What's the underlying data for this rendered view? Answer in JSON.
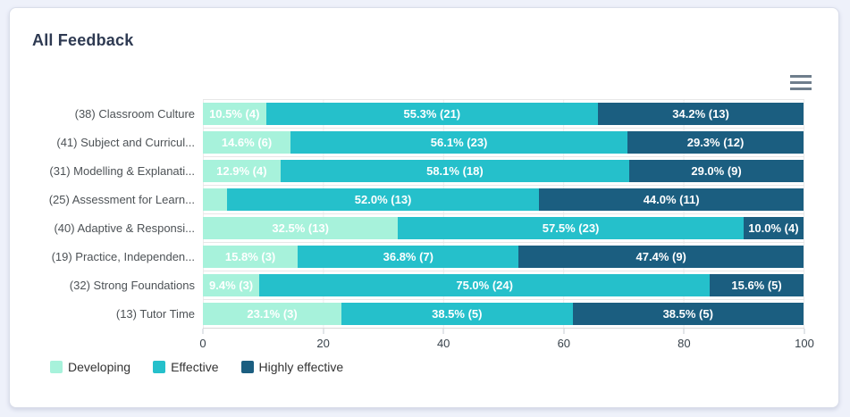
{
  "card": {
    "title": "All Feedback"
  },
  "toolbar": {
    "menu_icon": "hamburger-menu"
  },
  "chart_data": {
    "type": "bar",
    "stacked": true,
    "orientation": "horizontal",
    "title": "All Feedback",
    "xlabel": "",
    "ylabel": "",
    "value_axis": {
      "min": 0,
      "max": 100,
      "ticks": [
        0,
        20,
        40,
        60,
        80,
        100
      ]
    },
    "grid": true,
    "legend_position": "bottom-left",
    "series": [
      {
        "name": "Developing",
        "color": "#A7F2DB"
      },
      {
        "name": "Effective",
        "color": "#25C0CB"
      },
      {
        "name": "Highly effective",
        "color": "#1B5E80"
      }
    ],
    "categories": [
      "(38) Classroom Culture",
      "(41) Subject and Curricul...",
      "(31) Modelling & Explanati...",
      "(25) Assessment for Learn...",
      "(40) Adaptive & Responsi...",
      "(19) Practice, Independen...",
      "(32) Strong Foundations",
      "(13) Tutor Time"
    ],
    "rows": [
      {
        "category": "(38) Classroom Culture",
        "segments": [
          {
            "series": "Developing",
            "pct": 10.5,
            "label": "10.5% (4)"
          },
          {
            "series": "Effective",
            "pct": 55.3,
            "label": "55.3% (21)"
          },
          {
            "series": "Highly effective",
            "pct": 34.2,
            "label": "34.2% (13)"
          }
        ]
      },
      {
        "category": "(41) Subject and Curricul...",
        "segments": [
          {
            "series": "Developing",
            "pct": 14.6,
            "label": "14.6% (6)"
          },
          {
            "series": "Effective",
            "pct": 56.1,
            "label": "56.1% (23)"
          },
          {
            "series": "Highly effective",
            "pct": 29.3,
            "label": "29.3% (12)"
          }
        ]
      },
      {
        "category": "(31) Modelling & Explanati...",
        "segments": [
          {
            "series": "Developing",
            "pct": 12.9,
            "label": "12.9% (4)"
          },
          {
            "series": "Effective",
            "pct": 58.1,
            "label": "58.1% (18)"
          },
          {
            "series": "Highly effective",
            "pct": 29.0,
            "label": "29.0% (9)"
          }
        ]
      },
      {
        "category": "(25) Assessment for Learn...",
        "segments": [
          {
            "series": "Developing",
            "pct": 4.0,
            "label": ""
          },
          {
            "series": "Effective",
            "pct": 52.0,
            "label": "52.0% (13)"
          },
          {
            "series": "Highly effective",
            "pct": 44.0,
            "label": "44.0% (11)"
          }
        ]
      },
      {
        "category": "(40) Adaptive & Responsi...",
        "segments": [
          {
            "series": "Developing",
            "pct": 32.5,
            "label": "32.5% (13)"
          },
          {
            "series": "Effective",
            "pct": 57.5,
            "label": "57.5% (23)"
          },
          {
            "series": "Highly effective",
            "pct": 10.0,
            "label": "10.0% (4)"
          }
        ]
      },
      {
        "category": "(19) Practice, Independen...",
        "segments": [
          {
            "series": "Developing",
            "pct": 15.8,
            "label": "15.8% (3)"
          },
          {
            "series": "Effective",
            "pct": 36.8,
            "label": "36.8% (7)"
          },
          {
            "series": "Highly effective",
            "pct": 47.4,
            "label": "47.4% (9)"
          }
        ]
      },
      {
        "category": "(32) Strong Foundations",
        "segments": [
          {
            "series": "Developing",
            "pct": 9.4,
            "label": "9.4% (3)"
          },
          {
            "series": "Effective",
            "pct": 75.0,
            "label": "75.0% (24)"
          },
          {
            "series": "Highly effective",
            "pct": 15.6,
            "label": "15.6% (5)"
          }
        ]
      },
      {
        "category": "(13) Tutor Time",
        "segments": [
          {
            "series": "Developing",
            "pct": 23.1,
            "label": "23.1% (3)"
          },
          {
            "series": "Effective",
            "pct": 38.5,
            "label": "38.5% (5)"
          },
          {
            "series": "Highly effective",
            "pct": 38.5,
            "label": "38.5% (5)"
          }
        ]
      }
    ]
  }
}
